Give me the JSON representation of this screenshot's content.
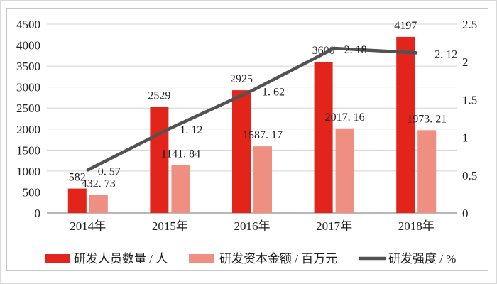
{
  "chart_data": {
    "type": "combo",
    "title": "",
    "categories": [
      "2014年",
      "2015年",
      "2016年",
      "2017年",
      "2018年"
    ],
    "series": [
      {
        "name": "研发人员数量 / 人",
        "kind": "bar",
        "axis": "left",
        "color": "#e2241b",
        "values": [
          582,
          2529,
          2925,
          3600,
          4197
        ],
        "labels": [
          "582",
          "2529",
          "2925",
          "3600",
          "4197"
        ]
      },
      {
        "name": "研发资本金额 / 百万元",
        "kind": "bar",
        "axis": "left",
        "color": "#ef8f82",
        "values": [
          432.73,
          1141.84,
          1587.17,
          2017.16,
          1973.21
        ],
        "labels": [
          "432. 73",
          "1141. 84",
          "1587. 17",
          "2017. 16",
          "1973. 21"
        ]
      },
      {
        "name": "研发强度 / %",
        "kind": "line",
        "axis": "right",
        "color": "#525252",
        "values": [
          0.57,
          1.12,
          1.62,
          2.18,
          2.12
        ],
        "labels": [
          "0. 57",
          "1. 12",
          "1. 62",
          "2. 18",
          "2. 12"
        ]
      }
    ],
    "left_axis": {
      "min": 0,
      "max": 4500,
      "step": 500,
      "ticks": [
        "0",
        "500",
        "1000",
        "1500",
        "2000",
        "2500",
        "3000",
        "3500",
        "4000",
        "4500"
      ]
    },
    "right_axis": {
      "min": 0,
      "max": 2.5,
      "step": 0.5,
      "ticks": [
        "0",
        "0.5",
        "1",
        "1.5",
        "2",
        "2.5"
      ]
    },
    "grid": true,
    "legend_position": "bottom"
  },
  "colors": {
    "bar_red": "#e2241b",
    "bar_pink": "#ef8f82",
    "trend_line": "#525252",
    "gridline": "#d3d3d3",
    "axis_line": "#8e8e8e",
    "frame_border": "#c6c6c6",
    "text": "#1f1f1f"
  }
}
